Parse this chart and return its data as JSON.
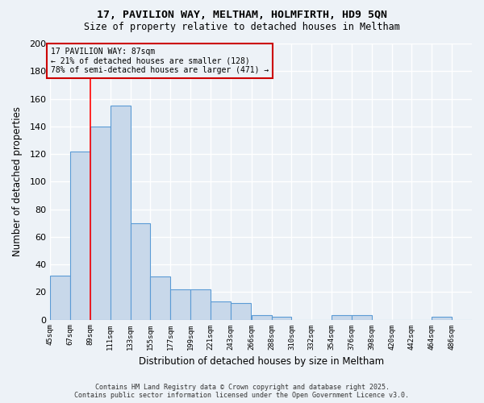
{
  "title1": "17, PAVILION WAY, MELTHAM, HOLMFIRTH, HD9 5QN",
  "title2": "Size of property relative to detached houses in Meltham",
  "xlabel": "Distribution of detached houses by size in Meltham",
  "ylabel": "Number of detached properties",
  "bin_labels": [
    "45sqm",
    "67sqm",
    "89sqm",
    "111sqm",
    "133sqm",
    "155sqm",
    "177sqm",
    "199sqm",
    "221sqm",
    "243sqm",
    "266sqm",
    "288sqm",
    "310sqm",
    "332sqm",
    "354sqm",
    "376sqm",
    "398sqm",
    "420sqm",
    "442sqm",
    "464sqm",
    "486sqm"
  ],
  "bin_edges": [
    45,
    67,
    89,
    111,
    133,
    155,
    177,
    199,
    221,
    243,
    266,
    288,
    310,
    332,
    354,
    376,
    398,
    420,
    442,
    464,
    486
  ],
  "bar_heights": [
    32,
    122,
    140,
    155,
    70,
    31,
    22,
    22,
    13,
    12,
    3,
    2,
    0,
    0,
    3,
    3,
    0,
    0,
    0,
    2,
    0
  ],
  "bar_color": "#c8d8ea",
  "bar_edge_color": "#5b9bd5",
  "red_line_x": 89,
  "ylim": [
    0,
    200
  ],
  "yticks": [
    0,
    20,
    40,
    60,
    80,
    100,
    120,
    140,
    160,
    180,
    200
  ],
  "annotation_text": "17 PAVILION WAY: 87sqm\n← 21% of detached houses are smaller (128)\n78% of semi-detached houses are larger (471) →",
  "annotation_box_color": "#cc0000",
  "background_color": "#edf2f7",
  "grid_color": "#ffffff",
  "footer": "Contains HM Land Registry data © Crown copyright and database right 2025.\nContains public sector information licensed under the Open Government Licence v3.0."
}
